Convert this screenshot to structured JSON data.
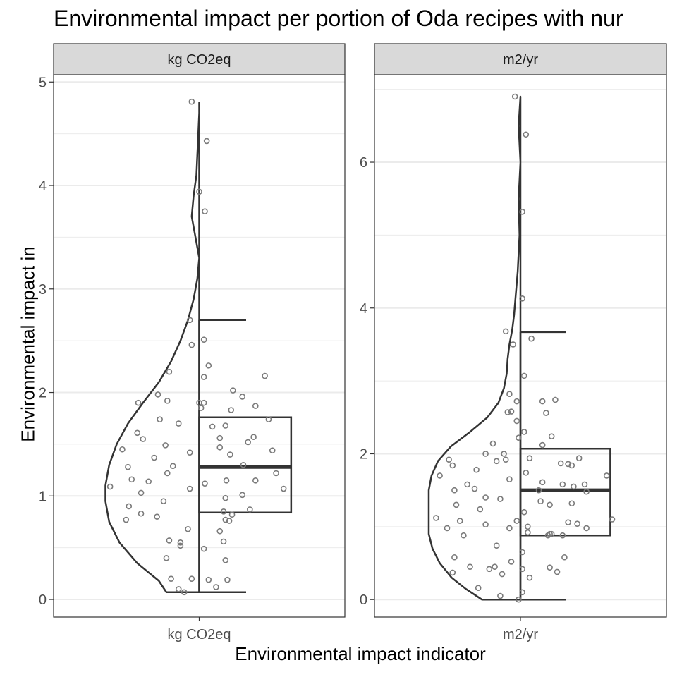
{
  "title": "Environmental impact per portion of Oda recipes with nur",
  "xlabel": "Environmental impact indicator",
  "ylabel": "Environmental impact in",
  "chart_data": [
    {
      "type": "violin+box",
      "panel": "kg CO2eq",
      "category": "kg CO2eq",
      "ylim": [
        -0.17,
        5.07
      ],
      "yticks": [
        0,
        1,
        2,
        3,
        4,
        5
      ],
      "box": {
        "whisker_low": 0.07,
        "q1": 0.84,
        "median": 1.28,
        "q3": 1.76,
        "whisker_high": 2.7
      },
      "density": [
        [
          0.07,
          0.35
        ],
        [
          0.18,
          0.43
        ],
        [
          0.35,
          0.66
        ],
        [
          0.55,
          0.85
        ],
        [
          0.75,
          0.96
        ],
        [
          0.95,
          1.0
        ],
        [
          1.1,
          1.0
        ],
        [
          1.3,
          0.96
        ],
        [
          1.5,
          0.88
        ],
        [
          1.7,
          0.76
        ],
        [
          1.9,
          0.6
        ],
        [
          2.1,
          0.43
        ],
        [
          2.3,
          0.3
        ],
        [
          2.5,
          0.2
        ],
        [
          2.7,
          0.12
        ],
        [
          2.9,
          0.06
        ],
        [
          3.1,
          0.02
        ],
        [
          3.3,
          0.0
        ],
        [
          3.5,
          0.04
        ],
        [
          3.7,
          0.08
        ],
        [
          3.9,
          0.06
        ],
        [
          4.1,
          0.03
        ],
        [
          4.3,
          0.02
        ],
        [
          4.5,
          0.01
        ],
        [
          4.7,
          0.0
        ],
        [
          4.8,
          0.0
        ]
      ],
      "points": [
        [
          -0.16,
          0.07
        ],
        [
          0.18,
          0.12
        ],
        [
          0.1,
          0.19
        ],
        [
          0.28,
          0.38
        ],
        [
          0.26,
          0.56
        ],
        [
          0.22,
          0.66
        ],
        [
          0.32,
          0.76
        ],
        [
          0.35,
          0.82
        ],
        [
          0.54,
          0.87
        ],
        [
          0.28,
          0.98
        ],
        [
          0.46,
          1.01
        ],
        [
          0.9,
          1.07
        ],
        [
          0.29,
          1.15
        ],
        [
          0.6,
          1.15
        ],
        [
          0.82,
          1.22
        ],
        [
          0.47,
          1.3
        ],
        [
          0.33,
          1.4
        ],
        [
          0.78,
          1.44
        ],
        [
          0.22,
          1.47
        ],
        [
          0.52,
          1.52
        ],
        [
          0.58,
          1.57
        ],
        [
          0.28,
          1.68
        ],
        [
          0.74,
          1.74
        ],
        [
          0.34,
          1.83
        ],
        [
          0.6,
          1.87
        ],
        [
          0.46,
          1.96
        ],
        [
          0.05,
          1.9
        ],
        [
          0.36,
          2.02
        ],
        [
          0.7,
          2.16
        ],
        [
          0.1,
          2.26
        ],
        [
          0.05,
          2.51
        ],
        [
          -0.08,
          2.46
        ],
        [
          -0.1,
          2.7
        ],
        [
          0.05,
          2.15
        ],
        [
          0.22,
          1.56
        ],
        [
          0.06,
          1.12
        ],
        [
          0.26,
          0.85
        ],
        [
          0.28,
          0.77
        ],
        [
          0.05,
          0.49
        ],
        [
          0.3,
          0.19
        ],
        [
          -0.08,
          0.2
        ],
        [
          -0.22,
          0.1
        ],
        [
          -0.3,
          0.2
        ],
        [
          -0.35,
          0.4
        ],
        [
          -0.32,
          0.57
        ],
        [
          -0.2,
          0.52
        ],
        [
          -0.45,
          0.8
        ],
        [
          -0.38,
          0.95
        ],
        [
          -0.62,
          0.83
        ],
        [
          -0.75,
          0.9
        ],
        [
          -0.78,
          0.77
        ],
        [
          -0.95,
          1.09
        ],
        [
          -0.62,
          1.03
        ],
        [
          -0.54,
          1.14
        ],
        [
          -0.72,
          1.16
        ],
        [
          -0.34,
          1.22
        ],
        [
          -0.82,
          1.45
        ],
        [
          -0.48,
          1.37
        ],
        [
          -0.76,
          1.28
        ],
        [
          -0.66,
          1.61
        ],
        [
          -0.6,
          1.55
        ],
        [
          -0.28,
          1.29
        ],
        [
          -0.36,
          1.49
        ],
        [
          -0.22,
          1.7
        ],
        [
          -0.42,
          1.74
        ],
        [
          -0.34,
          1.92
        ],
        [
          -0.44,
          1.98
        ],
        [
          -0.32,
          2.2
        ],
        [
          -0.65,
          1.9
        ],
        [
          -0.1,
          1.07
        ],
        [
          -0.12,
          0.68
        ],
        [
          -0.2,
          0.55
        ],
        [
          -0.1,
          1.42
        ],
        [
          0.02,
          1.85
        ],
        [
          0.0,
          1.9
        ],
        [
          0.14,
          1.67
        ],
        [
          0.06,
          3.75
        ],
        [
          0.0,
          3.94
        ],
        [
          0.08,
          4.43
        ],
        [
          -0.08,
          4.81
        ]
      ]
    },
    {
      "type": "violin+box",
      "panel": "m2/yr",
      "category": "m2/yr",
      "ylim": [
        -0.24,
        7.2
      ],
      "yticks": [
        0,
        2,
        4,
        6
      ],
      "box": {
        "whisker_low": 0.0,
        "q1": 0.88,
        "median": 1.5,
        "q3": 2.07,
        "whisker_high": 3.67
      },
      "density": [
        [
          0.0,
          0.42
        ],
        [
          0.15,
          0.6
        ],
        [
          0.3,
          0.75
        ],
        [
          0.5,
          0.88
        ],
        [
          0.7,
          0.96
        ],
        [
          0.9,
          1.0
        ],
        [
          1.1,
          1.0
        ],
        [
          1.3,
          1.0
        ],
        [
          1.5,
          1.0
        ],
        [
          1.7,
          0.97
        ],
        [
          1.9,
          0.9
        ],
        [
          2.1,
          0.76
        ],
        [
          2.3,
          0.55
        ],
        [
          2.5,
          0.36
        ],
        [
          2.7,
          0.24
        ],
        [
          2.9,
          0.18
        ],
        [
          3.1,
          0.15
        ],
        [
          3.3,
          0.14
        ],
        [
          3.5,
          0.12
        ],
        [
          3.7,
          0.09
        ],
        [
          3.9,
          0.07
        ],
        [
          4.2,
          0.05
        ],
        [
          4.5,
          0.03
        ],
        [
          5.0,
          0.01
        ],
        [
          5.5,
          0.02
        ],
        [
          6.0,
          0.0
        ],
        [
          6.5,
          0.02
        ],
        [
          6.9,
          0.0
        ]
      ],
      "points": [
        [
          -0.02,
          0.0
        ],
        [
          0.02,
          0.1
        ],
        [
          -0.22,
          0.05
        ],
        [
          0.1,
          0.3
        ],
        [
          0.02,
          0.42
        ],
        [
          0.4,
          0.38
        ],
        [
          0.32,
          0.44
        ],
        [
          0.48,
          0.58
        ],
        [
          0.3,
          0.88
        ],
        [
          0.72,
          0.98
        ],
        [
          0.62,
          1.04
        ],
        [
          1.0,
          1.1
        ],
        [
          0.04,
          1.2
        ],
        [
          0.32,
          0.9
        ],
        [
          0.52,
          1.06
        ],
        [
          0.56,
          1.32
        ],
        [
          0.94,
          1.7
        ],
        [
          0.72,
          1.48
        ],
        [
          0.7,
          1.58
        ],
        [
          0.46,
          1.58
        ],
        [
          0.56,
          1.84
        ],
        [
          0.64,
          1.94
        ],
        [
          0.44,
          1.87
        ],
        [
          0.2,
          1.5
        ],
        [
          0.06,
          1.74
        ],
        [
          0.24,
          1.61
        ],
        [
          0.22,
          1.35
        ],
        [
          0.34,
          2.24
        ],
        [
          0.1,
          1.94
        ],
        [
          0.28,
          2.56
        ],
        [
          0.38,
          2.74
        ],
        [
          0.24,
          2.12
        ],
        [
          0.58,
          1.55
        ],
        [
          0.04,
          2.3
        ],
        [
          0.08,
          1.0
        ],
        [
          0.32,
          1.3
        ],
        [
          0.34,
          0.9
        ],
        [
          0.46,
          0.88
        ],
        [
          0.52,
          1.86
        ],
        [
          0.02,
          0.65
        ],
        [
          0.08,
          0.92
        ],
        [
          0.24,
          2.72
        ],
        [
          -0.02,
          2.22
        ],
        [
          0.12,
          3.58
        ],
        [
          0.04,
          3.07
        ],
        [
          0.02,
          4.13
        ],
        [
          -0.08,
          3.5
        ],
        [
          -0.16,
          3.68
        ],
        [
          -0.04,
          2.72
        ],
        [
          -0.14,
          2.57
        ],
        [
          -0.04,
          2.45
        ],
        [
          -0.1,
          2.58
        ],
        [
          -0.18,
          2.0
        ],
        [
          -0.3,
          2.14
        ],
        [
          -0.38,
          2.0
        ],
        [
          -0.26,
          1.9
        ],
        [
          -0.16,
          1.92
        ],
        [
          -0.12,
          1.65
        ],
        [
          -0.22,
          1.38
        ],
        [
          -0.38,
          1.4
        ],
        [
          -0.44,
          1.24
        ],
        [
          -0.5,
          1.52
        ],
        [
          -0.58,
          1.58
        ],
        [
          -0.48,
          1.78
        ],
        [
          -0.72,
          1.5
        ],
        [
          -0.78,
          1.92
        ],
        [
          -0.88,
          1.7
        ],
        [
          -0.74,
          1.84
        ],
        [
          -0.7,
          1.3
        ],
        [
          -0.66,
          1.08
        ],
        [
          -0.62,
          0.88
        ],
        [
          -0.8,
          0.98
        ],
        [
          -0.92,
          1.12
        ],
        [
          -0.55,
          0.45
        ],
        [
          -0.72,
          0.58
        ],
        [
          -0.74,
          0.37
        ],
        [
          -0.46,
          0.16
        ],
        [
          -0.28,
          0.45
        ],
        [
          -0.04,
          1.08
        ],
        [
          -0.12,
          0.98
        ],
        [
          -0.26,
          0.74
        ],
        [
          -0.2,
          0.35
        ],
        [
          -0.34,
          0.42
        ],
        [
          -0.1,
          0.52
        ],
        [
          -0.38,
          1.03
        ],
        [
          -0.12,
          2.82
        ],
        [
          0.02,
          5.32
        ],
        [
          -0.06,
          6.9
        ],
        [
          0.06,
          6.38
        ]
      ]
    }
  ]
}
